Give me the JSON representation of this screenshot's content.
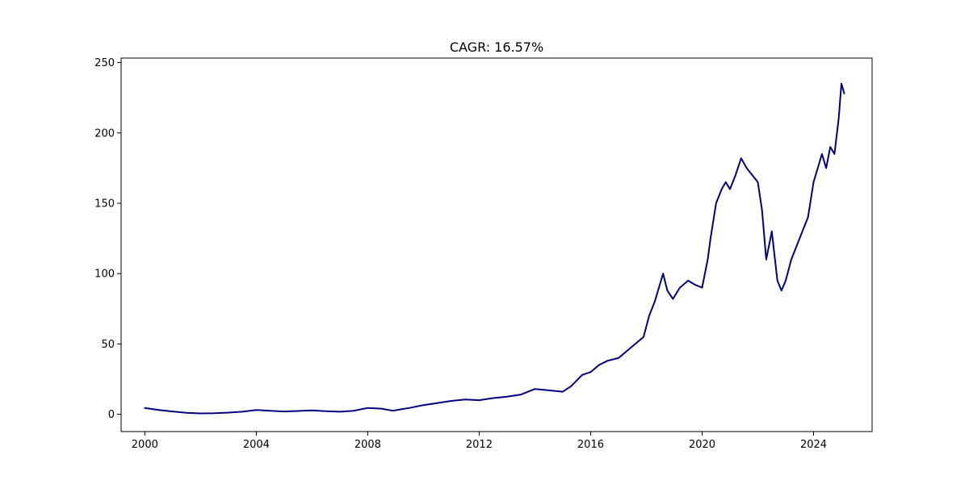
{
  "chart_data": {
    "type": "line",
    "title": "CAGR: 16.57%",
    "xlabel": "",
    "ylabel": "",
    "xlim": [
      1999.15,
      2026.1
    ],
    "ylim": [
      -12.3,
      253.2
    ],
    "x_ticks": [
      2000,
      2004,
      2008,
      2012,
      2016,
      2020,
      2024
    ],
    "x_tick_labels": [
      "2000",
      "2004",
      "2008",
      "2012",
      "2016",
      "2020",
      "2024"
    ],
    "y_ticks": [
      0,
      50,
      100,
      150,
      200,
      250
    ],
    "y_tick_labels": [
      "0",
      "50",
      "100",
      "150",
      "200",
      "250"
    ],
    "grid": false,
    "legend": "none",
    "series": [
      {
        "color": "#00007f",
        "x": [
          2000.0,
          2000.5,
          2001.0,
          2001.5,
          2002.0,
          2002.5,
          2003.0,
          2003.5,
          2004.0,
          2004.5,
          2005.0,
          2005.5,
          2006.0,
          2006.5,
          2007.0,
          2007.5,
          2008.0,
          2008.5,
          2008.9,
          2009.2,
          2009.5,
          2010.0,
          2010.5,
          2011.0,
          2011.5,
          2012.0,
          2012.5,
          2013.0,
          2013.5,
          2014.0,
          2014.5,
          2015.0,
          2015.3,
          2015.7,
          2016.0,
          2016.3,
          2016.6,
          2017.0,
          2017.3,
          2017.6,
          2017.9,
          2018.1,
          2018.3,
          2018.6,
          2018.75,
          2018.95,
          2019.2,
          2019.5,
          2019.75,
          2020.0,
          2020.2,
          2020.3,
          2020.5,
          2020.7,
          2020.85,
          2021.0,
          2021.2,
          2021.4,
          2021.6,
          2021.8,
          2022.0,
          2022.15,
          2022.3,
          2022.5,
          2022.7,
          2022.85,
          2023.0,
          2023.2,
          2023.4,
          2023.6,
          2023.8,
          2024.0,
          2024.15,
          2024.3,
          2024.45,
          2024.6,
          2024.75,
          2024.9,
          2025.0,
          2025.1
        ],
        "values": [
          4.5,
          3.0,
          2.0,
          1.0,
          0.6,
          0.8,
          1.2,
          1.8,
          3.0,
          2.5,
          2.0,
          2.3,
          2.8,
          2.2,
          1.8,
          2.5,
          4.5,
          4.0,
          2.5,
          3.5,
          4.5,
          6.5,
          8.0,
          9.5,
          10.5,
          10.0,
          11.5,
          12.5,
          14.0,
          18.0,
          17.0,
          16.0,
          20.0,
          28.0,
          30.0,
          35.0,
          38.0,
          40.0,
          45.0,
          50.0,
          55.0,
          70.0,
          80.0,
          100.0,
          88.0,
          82.0,
          90.0,
          95.0,
          92.0,
          90.0,
          110.0,
          125.0,
          150.0,
          160.0,
          165.0,
          160.0,
          170.0,
          182.0,
          175.0,
          170.0,
          165.0,
          145.0,
          110.0,
          130.0,
          95.0,
          88.0,
          95.0,
          110.0,
          120.0,
          130.0,
          140.0,
          165.0,
          175.0,
          185.0,
          175.0,
          190.0,
          185.0,
          210.0,
          235.0,
          228.0
        ]
      }
    ]
  }
}
